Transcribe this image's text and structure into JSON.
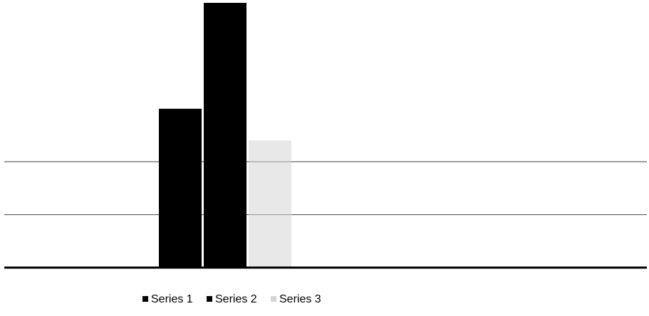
{
  "chart_data": {
    "type": "bar",
    "title": "",
    "xlabel": "",
    "ylabel": "",
    "categories": [
      ""
    ],
    "series": [
      {
        "name": "Series 1",
        "values": [
          3
        ],
        "color": "#000000"
      },
      {
        "name": "Series 2",
        "values": [
          5
        ],
        "color": "#000000"
      },
      {
        "name": "Series 3",
        "values": [
          2.4
        ],
        "color": "#d6d6d6"
      }
    ],
    "ylim": [
      0,
      5
    ],
    "gridlines": [
      1,
      2
    ],
    "grid": true,
    "legend_position": "bottom"
  }
}
